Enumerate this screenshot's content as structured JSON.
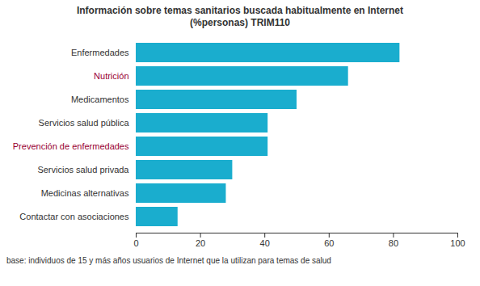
{
  "chart_data": {
    "type": "bar",
    "orientation": "horizontal",
    "title": "Información sobre temas sanitarios buscada habitualmente en Internet",
    "subtitle": "(%personas)   TRIM110",
    "footnote": "base: individuos de 15 y más años usuarios de Internet que la utilizan para temas de salud",
    "categories": [
      "Enfermedades",
      "Nutrición",
      "Medicamentos",
      "Servicios salud pública",
      "Prevención de enfermedades",
      "Servicios salud privada",
      "Medicinas alternativas",
      "Contactar con asociaciones"
    ],
    "values": [
      82,
      66,
      50,
      41,
      41,
      30,
      28,
      13
    ],
    "color": "#1aadce",
    "label_colors": [
      "#333333",
      "#990033",
      "#333333",
      "#333333",
      "#990033",
      "#333333",
      "#333333",
      "#333333"
    ],
    "xlim": [
      0,
      100
    ],
    "xticks": [
      0,
      20,
      40,
      60,
      80,
      100
    ],
    "grid": false
  }
}
